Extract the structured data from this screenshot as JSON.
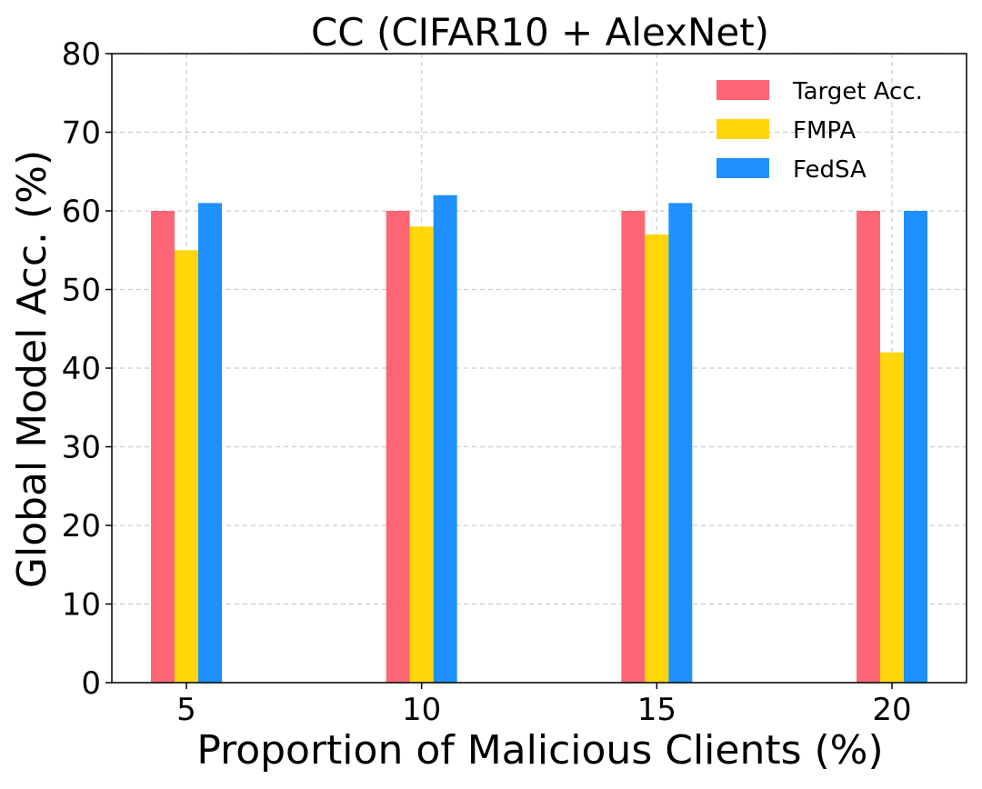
{
  "chart_data": {
    "type": "bar",
    "title": "CC (CIFAR10 + AlexNet)",
    "xlabel": "Proportion of Malicious Clients (%)",
    "ylabel": "Global Model Acc. (%)",
    "categories": [
      "5",
      "10",
      "15",
      "20"
    ],
    "ylim": [
      0,
      80
    ],
    "yticks": [
      0,
      10,
      20,
      30,
      40,
      50,
      60,
      70,
      80
    ],
    "grid": true,
    "legend_position": "top-right",
    "series": [
      {
        "name": "Target Acc.",
        "color": "#FF6675",
        "values": [
          60,
          60,
          60,
          60
        ]
      },
      {
        "name": "FMPA",
        "color": "#FFD60A",
        "values": [
          55,
          58,
          57,
          42
        ]
      },
      {
        "name": "FedSA",
        "color": "#1E90FF",
        "values": [
          61,
          62,
          61,
          60
        ]
      }
    ]
  }
}
